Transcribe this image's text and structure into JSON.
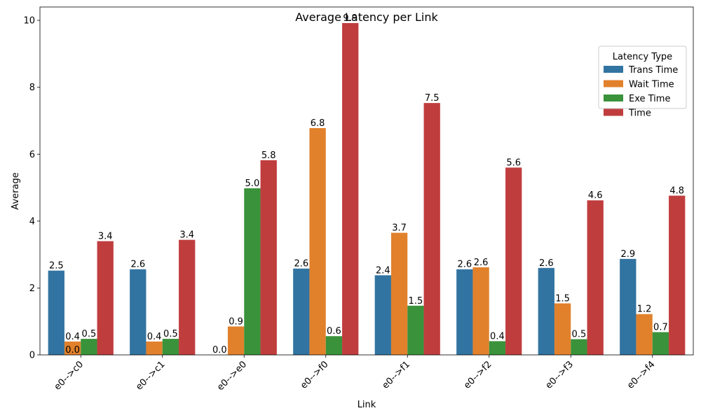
{
  "chart_data": {
    "type": "bar",
    "title": "Average Latency per Link",
    "xlabel": "Link",
    "ylabel": "Average",
    "ylim": [
      0,
      10.4
    ],
    "yticks": [
      0,
      2,
      4,
      6,
      8,
      10
    ],
    "categories": [
      "e0-->c0",
      "e0-->c1",
      "e0-->e0",
      "e0-->f0",
      "e0-->f1",
      "e0-->f2",
      "e0-->f3",
      "e0-->f4"
    ],
    "legend_title": "Latency Type",
    "legend_position": "top-right",
    "grid": false,
    "series": [
      {
        "name": "Trans Time",
        "color": "#3274a1",
        "values": [
          2.52,
          2.56,
          0.0,
          2.58,
          2.38,
          2.56,
          2.6,
          2.87
        ],
        "labels": [
          "2.5",
          "2.6",
          "0.0",
          "2.6",
          "2.4",
          "2.6",
          "2.6",
          "2.9"
        ]
      },
      {
        "name": "Wait Time",
        "color": "#e1812c",
        "values": [
          0.4,
          0.4,
          0.85,
          6.78,
          3.65,
          2.62,
          1.54,
          1.22
        ],
        "labels": [
          "0.4",
          "0.4",
          "0.9",
          "6.8",
          "3.7",
          "2.6",
          "1.5",
          "1.2"
        ]
      },
      {
        "name": "Exe Time",
        "color": "#3a923a",
        "values": [
          0.48,
          0.48,
          4.98,
          0.56,
          1.47,
          0.41,
          0.47,
          0.68
        ],
        "labels": [
          "0.5",
          "0.5",
          "5.0",
          "0.6",
          "1.5",
          "0.4",
          "0.5",
          "0.7"
        ]
      },
      {
        "name": "Time",
        "color": "#c03d3e",
        "values": [
          3.4,
          3.44,
          5.82,
          9.92,
          7.53,
          5.6,
          4.62,
          4.76
        ],
        "labels": [
          "3.4",
          "3.4",
          "5.8",
          "9.9",
          "7.5",
          "5.6",
          "4.6",
          "4.8"
        ]
      }
    ],
    "extra_labels": [
      {
        "category": "e0-->c0",
        "text": "0.0"
      }
    ]
  }
}
